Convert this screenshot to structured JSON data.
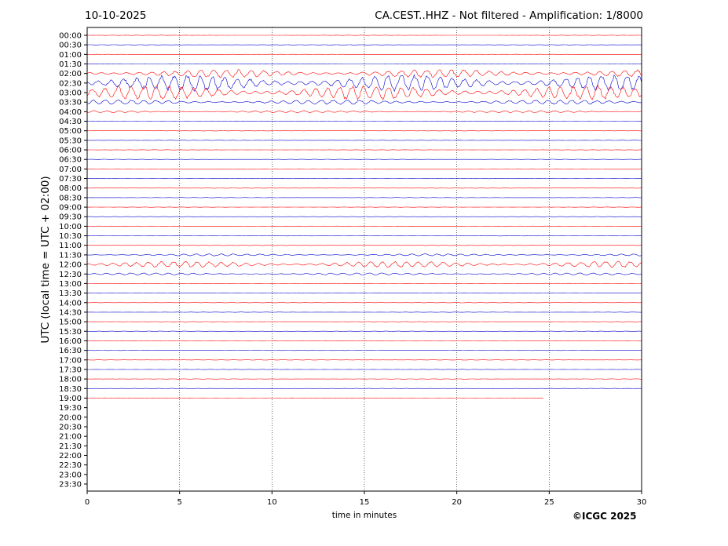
{
  "header": {
    "date": "10-10-2025",
    "title": "CA.CEST..HHZ - Not filtered - Amplification: 1/8000"
  },
  "footer": {
    "copyright": "©ICGC 2025"
  },
  "chart_data": {
    "type": "line",
    "title": "CA.CEST..HHZ - Not filtered - Amplification: 1/8000",
    "xlabel": "time in minutes",
    "ylabel": "UTC (local time = UTC + 02:00)",
    "xlim": [
      0,
      30
    ],
    "x_ticks": [
      "0",
      "5",
      "10",
      "15",
      "20",
      "25",
      "30"
    ],
    "y_ticks": [
      "00:00",
      "00:30",
      "01:00",
      "01:30",
      "02:00",
      "02:30",
      "03:00",
      "03:30",
      "04:00",
      "04:30",
      "05:00",
      "05:30",
      "06:00",
      "06:30",
      "07:00",
      "07:30",
      "08:00",
      "08:30",
      "09:00",
      "09:30",
      "10:00",
      "10:30",
      "11:00",
      "11:30",
      "12:00",
      "12:30",
      "13:00",
      "13:30",
      "14:00",
      "14:30",
      "15:00",
      "15:30",
      "16:00",
      "16:30",
      "17:00",
      "17:30",
      "18:00",
      "18:30",
      "19:00",
      "19:30",
      "20:00",
      "20:30",
      "21:00",
      "21:30",
      "22:00",
      "22:30",
      "23:00",
      "23:30"
    ],
    "grid": "vertical-dotted",
    "trace_colors": [
      "#ff0000",
      "#0000cc"
    ],
    "trace_last_minute": 24.7,
    "active_traces": [
      {
        "time": "02:00",
        "amplitude": 0.45
      },
      {
        "time": "02:30",
        "amplitude": 0.9
      },
      {
        "time": "03:00",
        "amplitude": 0.8
      },
      {
        "time": "03:30",
        "amplitude": 0.25
      },
      {
        "time": "04:00",
        "amplitude": 0.12
      },
      {
        "time": "11:30",
        "amplitude": 0.12
      },
      {
        "time": "12:00",
        "amplitude": 0.35
      },
      {
        "time": "12:30",
        "amplitude": 0.12
      }
    ]
  }
}
